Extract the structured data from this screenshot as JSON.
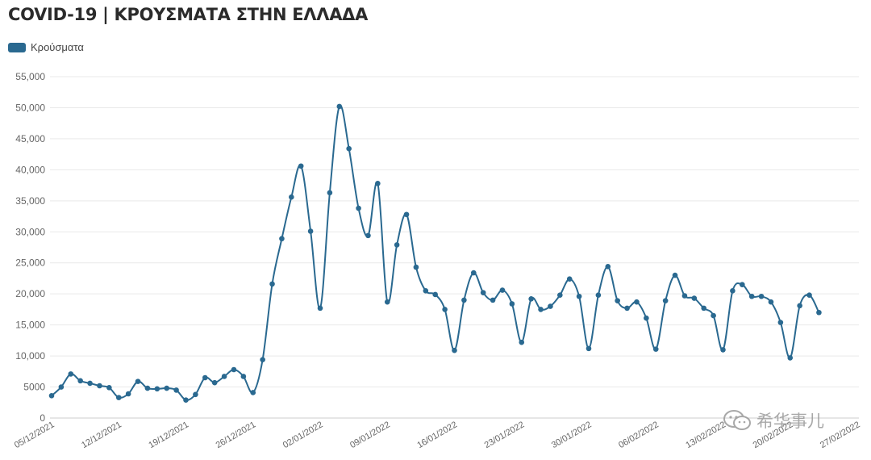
{
  "title": "COVID-19 | ΚΡΟΥΣΜΑΤΑ ΣΤΗΝ ΕΛΛΑΔΑ",
  "watermark": "希华事儿",
  "colors": {
    "series": "#2a6990",
    "grid": "#e9e9e9",
    "axis": "#cccccc"
  },
  "chart_data": {
    "type": "line",
    "title": "COVID-19 | ΚΡΟΥΣΜΑΤΑ ΣΤΗΝ ΕΛΛΑΔΑ",
    "xlabel": "",
    "ylabel": "",
    "ylim": [
      0,
      55000
    ],
    "xlim": [
      "05/12/2021",
      "27/02/2022"
    ],
    "y_ticks": [
      "0",
      "5000",
      "10,000",
      "15,000",
      "20,000",
      "25,000",
      "30,000",
      "35,000",
      "40,000",
      "45,000",
      "50,000",
      "55,000"
    ],
    "x_ticks": [
      "05/12/2021",
      "12/12/2021",
      "19/12/2021",
      "26/12/2021",
      "02/01/2022",
      "09/01/2022",
      "16/01/2022",
      "23/01/2022",
      "30/01/2022",
      "06/02/2022",
      "13/02/2022",
      "20/02/2022",
      "27/02/2022"
    ],
    "legend": "top-left",
    "grid": true,
    "series": [
      {
        "name": "Κρούσματα",
        "x_start": "05/12/2021",
        "values": [
          3600,
          5000,
          7100,
          6000,
          5600,
          5200,
          4900,
          3300,
          3900,
          5900,
          4800,
          4700,
          4800,
          4500,
          2900,
          3800,
          6500,
          5700,
          6700,
          7800,
          6700,
          4100,
          9400,
          21600,
          28900,
          35600,
          40600,
          30100,
          17700,
          36300,
          50200,
          43400,
          33800,
          29400,
          37800,
          18700,
          27900,
          32800,
          24300,
          20500,
          19900,
          17500,
          10900,
          19000,
          23400,
          20200,
          19000,
          20600,
          18400,
          12200,
          19200,
          17500,
          18000,
          19800,
          22400,
          19600,
          11200,
          19800,
          24400,
          18900,
          17700,
          18700,
          16100,
          11100,
          18900,
          23000,
          19700,
          19300,
          17700,
          16500,
          11000,
          20500,
          21500,
          19600,
          19600,
          18700,
          15400,
          9700,
          18100,
          19800,
          17000
        ]
      }
    ]
  }
}
